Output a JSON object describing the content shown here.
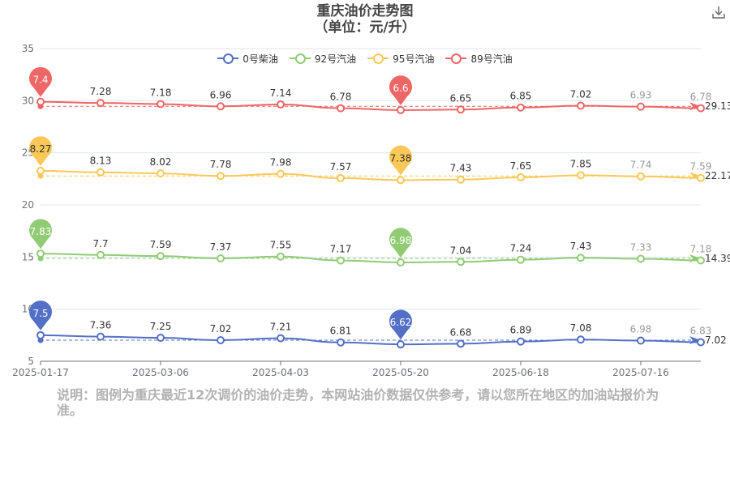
{
  "header": {
    "title": "重庆油价走势图",
    "subtitle": "（单位：元/升）",
    "download_icon": "download-icon"
  },
  "note": "说明：图例为重庆最近12次调价的油价走势，本网站油价数据仅供参考，请以您所在地区的加油站报价为准。",
  "chart_data": {
    "type": "line",
    "title": "重庆油价走势图",
    "subtitle": "（单位：元/升）",
    "x_ticks": [
      "2025-01-17",
      "2025-03-06",
      "2025-04-03",
      "2025-05-20",
      "2025-06-18",
      "2025-07-16"
    ],
    "y_ticks": [
      "5",
      "10",
      "15",
      "20",
      "25",
      "30",
      "35"
    ],
    "ylim": [
      5,
      35
    ],
    "legend_position": "top",
    "grid": true,
    "series": [
      {
        "name": "0号柴油",
        "color": "#5470c6",
        "values": [
          7.5,
          7.36,
          7.25,
          7.02,
          7.21,
          6.81,
          6.62,
          6.68,
          6.89,
          7.08,
          6.98,
          6.83
        ],
        "value_labels": [
          "",
          "7.36",
          "7.25",
          "7.02",
          "7.21",
          "6.81",
          "",
          "6.68",
          "6.89",
          "7.08",
          "6.98",
          "6.83"
        ],
        "max_pin": "7.5",
        "min_pin": "6.62",
        "avg_label": "7.02"
      },
      {
        "name": "92号汽油",
        "color": "#91cc75",
        "values": [
          7.83,
          7.7,
          7.59,
          7.37,
          7.55,
          7.17,
          6.98,
          7.04,
          7.24,
          7.43,
          7.33,
          7.18
        ],
        "value_labels": [
          "",
          "7.7",
          "7.59",
          "7.37",
          "7.55",
          "7.17",
          "",
          "7.04",
          "7.24",
          "7.43",
          "7.33",
          "7.18"
        ],
        "max_pin": "7.83",
        "min_pin": "6.98",
        "avg_label": "14.39"
      },
      {
        "name": "95号汽油",
        "color": "#fac858",
        "values": [
          8.27,
          8.13,
          8.02,
          7.78,
          7.98,
          7.57,
          7.38,
          7.43,
          7.65,
          7.85,
          7.74,
          7.59
        ],
        "value_labels": [
          "",
          "8.13",
          "8.02",
          "7.78",
          "7.98",
          "7.57",
          "",
          "7.43",
          "7.65",
          "7.85",
          "7.74",
          "7.59"
        ],
        "max_pin": "8.27",
        "min_pin": "7.38",
        "avg_label": "22.17"
      },
      {
        "name": "89号汽油",
        "color": "#ee6666",
        "values": [
          7.4,
          7.28,
          7.18,
          6.96,
          7.14,
          6.78,
          6.6,
          6.65,
          6.85,
          7.02,
          6.93,
          6.78
        ],
        "value_labels": [
          "",
          "7.28",
          "7.18",
          "6.96",
          "7.14",
          "6.78",
          "",
          "6.65",
          "6.85",
          "7.02",
          "6.93",
          "6.78"
        ],
        "max_pin": "7.4",
        "min_pin": "6.6",
        "avg_label": "29.13"
      }
    ]
  }
}
